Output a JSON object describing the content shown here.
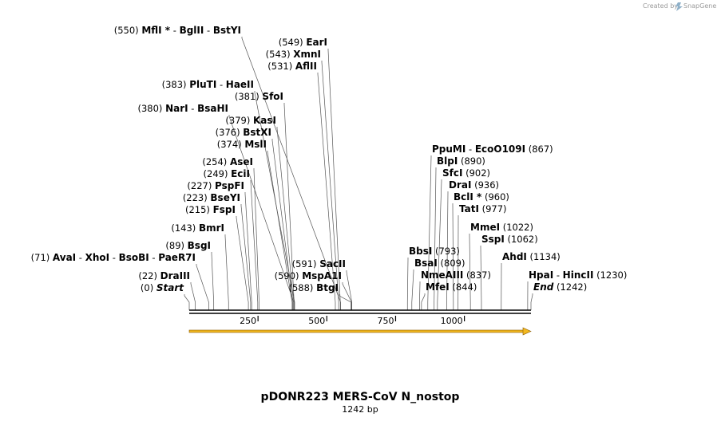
{
  "brand": {
    "text": "Created by",
    "name": "SnapGene"
  },
  "plasmid": {
    "name": "pDONR223 MERS-CoV N_nostop",
    "length_text": "1242 bp",
    "length": 1242
  },
  "ticks": [
    250,
    500,
    750,
    1000
  ],
  "sites": {
    "left": [
      {
        "pos": 550,
        "names": [
          "MflI *",
          "BglII",
          "BstYI"
        ]
      },
      {
        "pos": 549,
        "names": [
          "EarI"
        ]
      },
      {
        "pos": 543,
        "names": [
          "XmnI"
        ]
      },
      {
        "pos": 531,
        "names": [
          "AflII"
        ]
      },
      {
        "pos": 383,
        "names": [
          "PluTI",
          "HaeII"
        ]
      },
      {
        "pos": 381,
        "names": [
          "SfoI"
        ]
      },
      {
        "pos": 380,
        "names": [
          "NarI",
          "BsaHI"
        ]
      },
      {
        "pos": 379,
        "names": [
          "KasI"
        ]
      },
      {
        "pos": 376,
        "names": [
          "BstXI"
        ]
      },
      {
        "pos": 374,
        "names": [
          "MslI"
        ]
      },
      {
        "pos": 254,
        "names": [
          "AseI"
        ]
      },
      {
        "pos": 249,
        "names": [
          "EciI"
        ]
      },
      {
        "pos": 227,
        "names": [
          "PspFI"
        ]
      },
      {
        "pos": 223,
        "names": [
          "BseYI"
        ]
      },
      {
        "pos": 215,
        "names": [
          "FspI"
        ]
      },
      {
        "pos": 143,
        "names": [
          "BmrI"
        ]
      },
      {
        "pos": 89,
        "names": [
          "BsgI"
        ]
      },
      {
        "pos": 71,
        "names": [
          "AvaI",
          "XhoI",
          "BsoBI",
          "PaeR7I"
        ]
      },
      {
        "pos": 22,
        "names": [
          "DraIII"
        ]
      },
      {
        "pos": 0,
        "names": [
          "Start"
        ],
        "italic": true
      },
      {
        "pos": 591,
        "names": [
          "SacII"
        ]
      },
      {
        "pos": 590,
        "names": [
          "MspA1I"
        ]
      },
      {
        "pos": 588,
        "names": [
          "BtgI"
        ]
      }
    ],
    "right": [
      {
        "pos": 867,
        "names": [
          "PpuMI",
          "EcoO109I"
        ]
      },
      {
        "pos": 890,
        "names": [
          "BlpI"
        ]
      },
      {
        "pos": 902,
        "names": [
          "SfcI"
        ]
      },
      {
        "pos": 936,
        "names": [
          "DraI"
        ]
      },
      {
        "pos": 960,
        "names": [
          "BclI *"
        ]
      },
      {
        "pos": 977,
        "names": [
          "TatI"
        ]
      },
      {
        "pos": 1022,
        "names": [
          "MmeI"
        ]
      },
      {
        "pos": 1062,
        "names": [
          "SspI"
        ]
      },
      {
        "pos": 1134,
        "names": [
          "AhdI"
        ]
      },
      {
        "pos": 1230,
        "names": [
          "HpaI",
          "HincII"
        ]
      },
      {
        "pos": 1242,
        "names": [
          "End"
        ],
        "italic": true
      },
      {
        "pos": 793,
        "names": [
          "BbsI"
        ]
      },
      {
        "pos": 809,
        "names": [
          "BsaI"
        ]
      },
      {
        "pos": 837,
        "names": [
          "NmeAIII"
        ]
      },
      {
        "pos": 844,
        "names": [
          "MfeI"
        ]
      }
    ]
  }
}
